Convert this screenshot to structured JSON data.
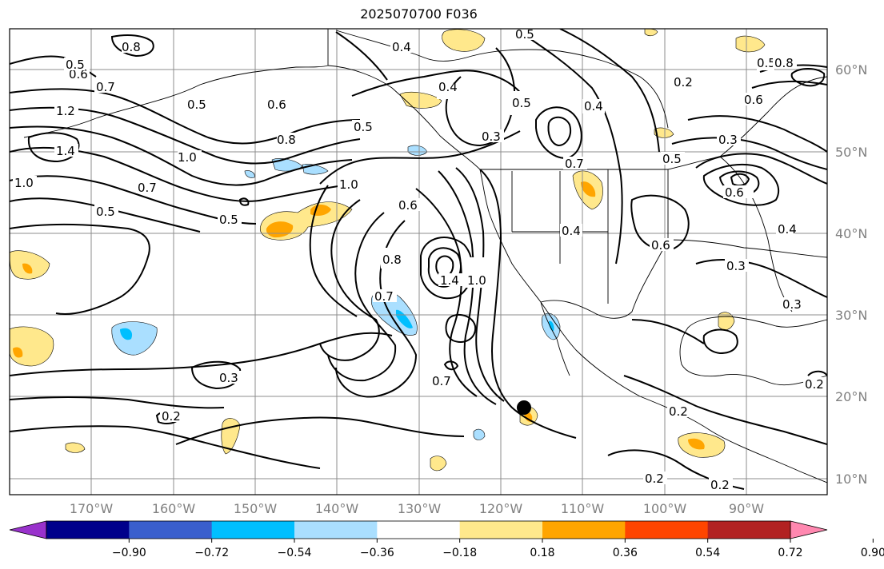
{
  "title": "2025070700 F036",
  "lat_labels": [
    "60°N",
    "50°N",
    "40°N",
    "30°N",
    "20°N",
    "10°N"
  ],
  "lon_labels": [
    "170°W",
    "160°W",
    "150°W",
    "140°W",
    "130°W",
    "120°W",
    "110°W",
    "100°W",
    "90°W"
  ],
  "colorbar": {
    "ticks": [
      "−0.90",
      "−0.72",
      "−0.54",
      "−0.36",
      "−0.18",
      "0.18",
      "0.36",
      "0.54",
      "0.72",
      "0.90"
    ],
    "colors": [
      "#9932cc",
      "#00008b",
      "#3a5fcd",
      "#00bfff",
      "#aadfff",
      "#ffffff",
      "#ffe88c",
      "#ffa500",
      "#ff4500",
      "#b22222",
      "#ff88b0"
    ]
  },
  "contour_labels": [
    "0.8",
    "0.5",
    "0.6",
    "0.7",
    "1.2",
    "0.5",
    "0.6",
    "0.5",
    "1.4",
    "0.8",
    "1.0",
    "1.0",
    "0.7",
    "0.5",
    "0.5",
    "1.0",
    "0.6",
    "0.8",
    "1.4",
    "0.7",
    "0.7",
    "0.3",
    "0.2",
    "0.4",
    "0.4",
    "0.5",
    "0.3",
    "0.4",
    "0.5",
    "0.7",
    "0.4",
    "0.6",
    "0.5",
    "0.3",
    "0.6",
    "0.3",
    "0.3",
    "0.2",
    "0.2",
    "0.2",
    "0.2",
    "0.5",
    "0.6",
    "0.8",
    "0.2",
    "0.4",
    "1.0"
  ]
}
